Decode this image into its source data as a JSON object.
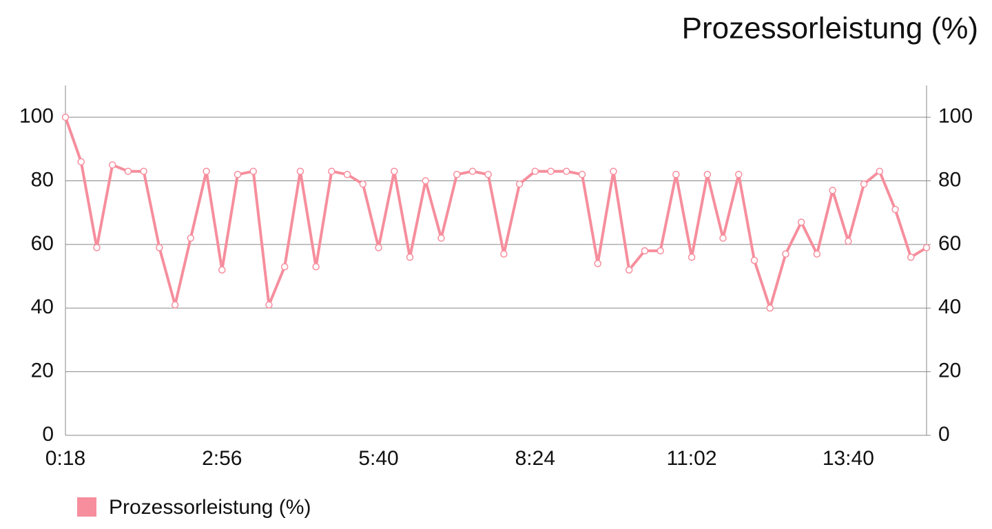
{
  "chart_data": {
    "type": "line",
    "title": "Prozessorleistung (%)",
    "categories": [
      "0:18",
      null,
      null,
      null,
      null,
      null,
      null,
      null,
      null,
      null,
      "2:56",
      null,
      null,
      null,
      null,
      null,
      null,
      null,
      null,
      null,
      "5:40",
      null,
      null,
      null,
      null,
      null,
      null,
      null,
      null,
      null,
      "8:24",
      null,
      null,
      null,
      null,
      null,
      null,
      null,
      null,
      null,
      "11:02",
      null,
      null,
      null,
      null,
      null,
      null,
      null,
      null,
      null,
      "13:40",
      null,
      null,
      null,
      null,
      null
    ],
    "series": [
      {
        "name": "Prozessorleistung (%)",
        "color": "#f68e9d",
        "values": [
          100,
          86,
          59,
          85,
          83,
          83,
          59,
          41,
          62,
          83,
          52,
          82,
          83,
          41,
          53,
          83,
          53,
          83,
          82,
          79,
          59,
          83,
          56,
          80,
          62,
          82,
          83,
          82,
          57,
          79,
          83,
          83,
          83,
          82,
          54,
          83,
          52,
          58,
          58,
          82,
          56,
          82,
          62,
          82,
          55,
          40,
          57,
          67,
          57,
          77,
          61,
          79,
          83,
          71,
          56,
          59
        ]
      }
    ],
    "ylim": [
      0,
      110
    ],
    "yticks": [
      0,
      20,
      40,
      60,
      80,
      100
    ],
    "y2lim": [
      0,
      110
    ],
    "y2ticks": [
      0,
      20,
      40,
      60,
      80,
      100
    ],
    "grid": true,
    "legend": "bottom-left"
  }
}
